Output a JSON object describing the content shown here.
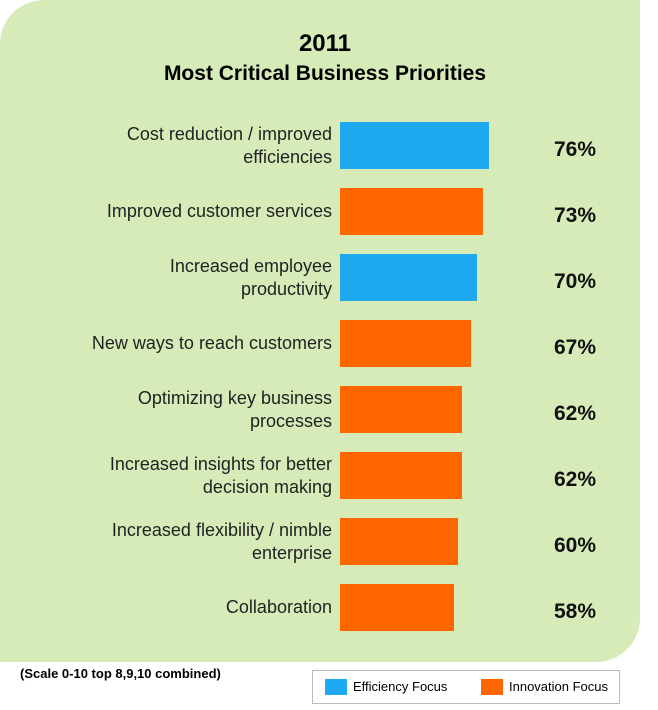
{
  "chart_data": {
    "type": "bar",
    "orientation": "horizontal",
    "title": "2011",
    "subtitle": "Most Critical Business Priorities",
    "categories": [
      "Cost reduction / improved\nefficiencies",
      "Improved customer services",
      "Increased employee\nproductivity",
      "New ways to reach customers",
      "Optimizing key business\nprocesses",
      "Increased insights for better\ndecision making",
      "Increased flexibility / nimble\nenterprise",
      "Collaboration"
    ],
    "series": [
      {
        "name": "Efficiency Focus",
        "color": "#1ea8f0",
        "values": [
          76,
          null,
          70,
          null,
          null,
          null,
          null,
          null
        ],
        "value_labels": [
          "76%",
          null,
          "70%",
          null,
          null,
          null,
          null,
          null
        ]
      },
      {
        "name": "Innovation Focus",
        "color": "#ff6600",
        "values": [
          null,
          73,
          null,
          67,
          62,
          62,
          60,
          58
        ],
        "value_labels": [
          null,
          "73%",
          null,
          "67%",
          "62%",
          "62%",
          "60%",
          "58%"
        ]
      }
    ],
    "footnote": "(Scale 0-10 top 8,9,10 combined)",
    "legend": "bottom-right"
  }
}
